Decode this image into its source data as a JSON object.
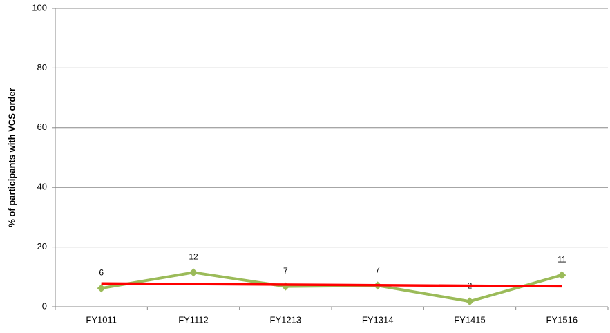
{
  "chart_data": {
    "type": "line",
    "y_label": "% of participants with VCS order",
    "categories": [
      "FY1011",
      "FY1112",
      "FY1213",
      "FY1314",
      "FY1415",
      "FY1516"
    ],
    "series": [
      {
        "color": "#9bbb59",
        "values": [
          6.2,
          11.5,
          6.8,
          7.1,
          1.8,
          10.6
        ],
        "value_labels": [
          "6",
          "12",
          "7",
          "7",
          "2",
          "11"
        ]
      }
    ],
    "trendline": {
      "color": "#ff0000",
      "values": [
        7.8,
        6.85
      ]
    },
    "ylim": [
      0,
      100
    ],
    "yticks": [
      0,
      20,
      40,
      60,
      80,
      100
    ],
    "grid": true
  }
}
